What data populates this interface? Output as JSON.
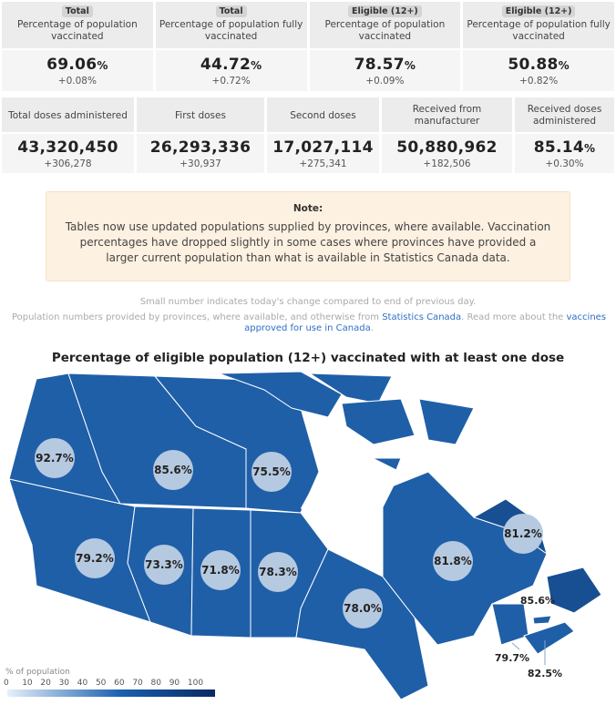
{
  "top_cards": [
    {
      "badge": "Total",
      "label_1": "Percentage of population",
      "label_2": "vaccinated",
      "value": "69.06",
      "unit": "%",
      "change": "+0.08%"
    },
    {
      "badge": "Total",
      "label_1": "Percentage of population fully",
      "label_2": "vaccinated",
      "value": "44.72",
      "unit": "%",
      "change": "+0.72%"
    },
    {
      "badge": "Eligible (12+)",
      "label_1": "Percentage of population",
      "label_2": "vaccinated",
      "value": "78.57",
      "unit": "%",
      "change": "+0.09%"
    },
    {
      "badge": "Eligible (12+)",
      "label_1": "Percentage of population fully",
      "label_2": "vaccinated",
      "value": "50.88",
      "unit": "%",
      "change": "+0.82%"
    }
  ],
  "dose_cards": [
    {
      "label_1": "Total doses administered",
      "label_2": "",
      "value": "43,320,450",
      "unit": "",
      "change": "+306,278"
    },
    {
      "label_1": "First doses",
      "label_2": "",
      "value": "26,293,336",
      "unit": "",
      "change": "+30,937"
    },
    {
      "label_1": "Second doses",
      "label_2": "",
      "value": "17,027,114",
      "unit": "",
      "change": "+275,341"
    },
    {
      "label_1": "Received from",
      "label_2": "manufacturer",
      "value": "50,880,962",
      "unit": "",
      "change": "+182,506"
    },
    {
      "label_1": "Received doses",
      "label_2": "administered",
      "value": "85.14",
      "unit": "%",
      "change": "+0.30%"
    }
  ],
  "note": {
    "title": "Note:",
    "text": "Tables now use updated populations supplied by provinces, where available. Vaccination percentages have dropped slightly in some cases where provinces have provided a larger current population than what is available in Statistics Canada data."
  },
  "source": {
    "line1": "Small number indicates today's change compared to end of previous day.",
    "line2_prefix": "Population numbers provided by provinces, where available, and otherwise from ",
    "link1": "Statistics Canada",
    "line2_middle": ". Read more about the ",
    "link2": "vaccines approved for use in Canada",
    "line2_suffix": "."
  },
  "map": {
    "title": "Percentage of eligible population (12+) vaccinated with at least one dose",
    "regions": [
      {
        "name": "YT",
        "value": "92.7%"
      },
      {
        "name": "NT",
        "value": "85.6%"
      },
      {
        "name": "NU",
        "value": "75.5%"
      },
      {
        "name": "BC",
        "value": "79.2%"
      },
      {
        "name": "AB",
        "value": "73.3%"
      },
      {
        "name": "SK",
        "value": "71.8%"
      },
      {
        "name": "MB",
        "value": "78.3%"
      },
      {
        "name": "ON",
        "value": "78.0%"
      },
      {
        "name": "QC",
        "value": "81.8%"
      },
      {
        "name": "NL",
        "value": "81.2%"
      },
      {
        "name": "NB",
        "value": "79.7%"
      },
      {
        "name": "NS",
        "value": "82.5%"
      },
      {
        "name": "PE",
        "value": "85.6%"
      }
    ],
    "legend_title": "% of population",
    "legend_ticks": [
      "0",
      "10",
      "20",
      "30",
      "40",
      "50",
      "60",
      "70",
      "80",
      "90",
      "100"
    ]
  },
  "colors": {
    "map_fill": "#1f5fa8",
    "map_fill_dark": "#174f92",
    "bubble": "#b5c9e0"
  }
}
